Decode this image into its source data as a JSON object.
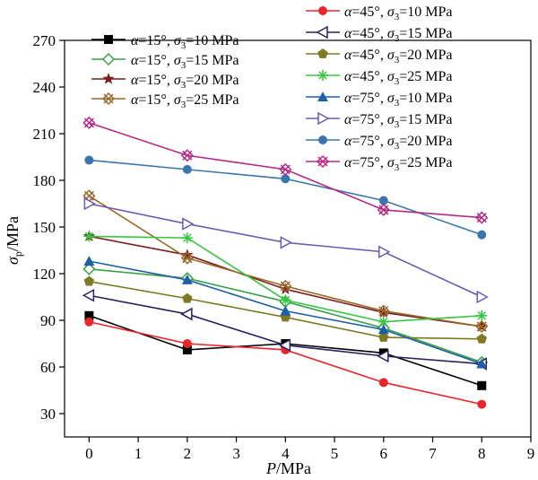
{
  "chart_data": {
    "type": "line",
    "xlabel": "P/MPa",
    "ylabel": "σp/MPa",
    "xlim": [
      -0.5,
      9
    ],
    "ylim": [
      15,
      270
    ],
    "xticks": [
      "0",
      "1",
      "2",
      "3",
      "4",
      "5",
      "6",
      "7",
      "8",
      "9"
    ],
    "yticks": [
      "30",
      "60",
      "90",
      "120",
      "150",
      "180",
      "210",
      "240",
      "270"
    ],
    "x": [
      0,
      2,
      4,
      6,
      8
    ],
    "series": [
      {
        "name": "α=15°, σ3=10 MPa",
        "color": "#000000",
        "marker": "square-filled",
        "values": [
          93,
          71,
          75,
          69,
          48
        ]
      },
      {
        "name": "α=15°, σ3=15 MPa",
        "color": "#3aa047",
        "marker": "diamond-open",
        "values": [
          123,
          117,
          102,
          85,
          63
        ]
      },
      {
        "name": "α=15°, σ3=20 MPa",
        "color": "#7b1e1e",
        "marker": "star-filled",
        "values": [
          144,
          132,
          110,
          95,
          86
        ]
      },
      {
        "name": "α=15°, σ3=25 MPa",
        "color": "#9a6a2a",
        "marker": "xsquare",
        "values": [
          170,
          130,
          112,
          96,
          86
        ]
      },
      {
        "name": "α=45°, σ3=10 MPa",
        "color": "#e8262b",
        "marker": "circle-filled",
        "values": [
          89,
          75,
          71,
          50,
          36
        ]
      },
      {
        "name": "α=45°, σ3=15 MPa",
        "color": "#262262",
        "marker": "triangle-left-open",
        "values": [
          106,
          94,
          74,
          67,
          62
        ]
      },
      {
        "name": "α=45°, σ3=20 MPa",
        "color": "#7d7a22",
        "marker": "pentagon-filled",
        "values": [
          115,
          104,
          92,
          79,
          78
        ]
      },
      {
        "name": "α=45°, σ3=25 MPa",
        "color": "#36c640",
        "marker": "asterisk",
        "values": [
          144,
          143,
          103,
          89,
          93
        ]
      },
      {
        "name": "α=75°, σ3=10 MPa",
        "color": "#1f5fa6",
        "marker": "triangle-up-filled",
        "values": [
          128,
          116,
          96,
          84,
          62
        ]
      },
      {
        "name": "α=75°, σ3=15 MPa",
        "color": "#6f5ab6",
        "marker": "triangle-right-open",
        "values": [
          165,
          152,
          140,
          134,
          105
        ]
      },
      {
        "name": "α=75°, σ3=20 MPa",
        "color": "#3a76ab",
        "marker": "circle-filled",
        "values": [
          193,
          187,
          181,
          167,
          145
        ]
      },
      {
        "name": "α=75°, σ3=25 MPa",
        "color": "#b32a86",
        "marker": "xsquare",
        "values": [
          217,
          196,
          187,
          161,
          156
        ]
      }
    ]
  }
}
